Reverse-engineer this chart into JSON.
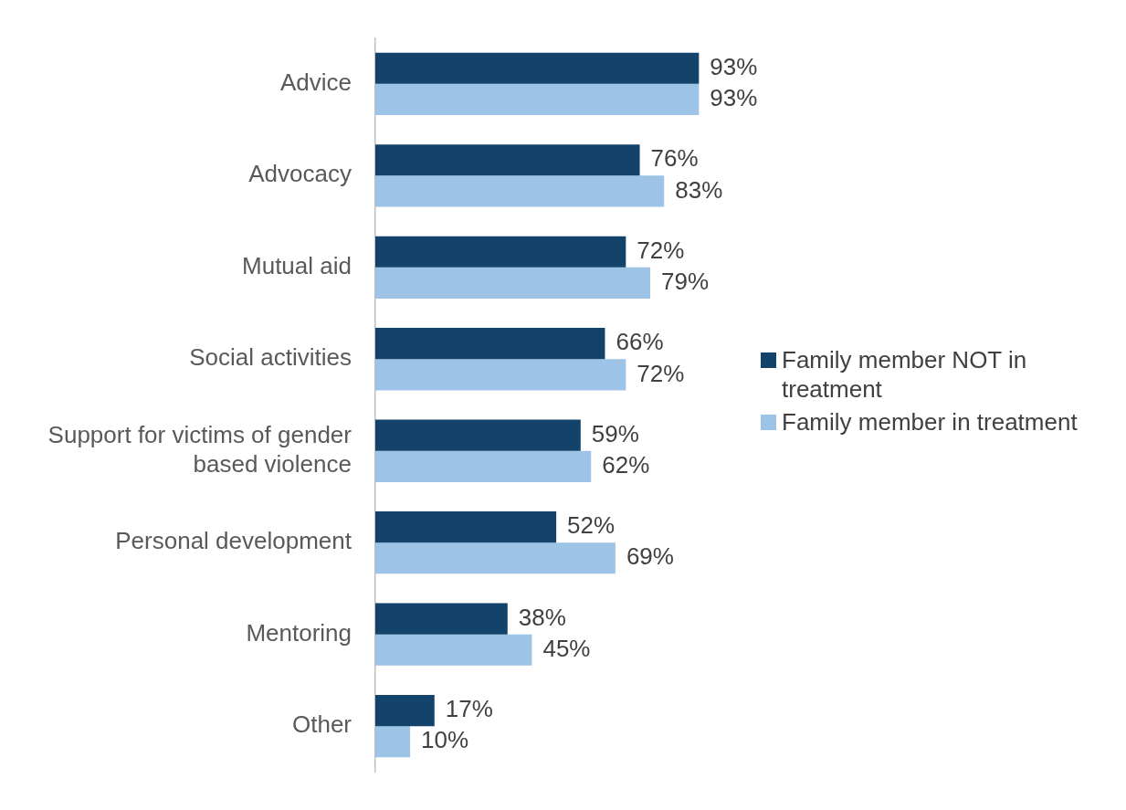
{
  "chart_data": {
    "type": "bar",
    "orientation": "horizontal",
    "categories": [
      "Advice",
      "Advocacy",
      "Mutual aid",
      "Social activities",
      "Support for victims of gender based violence",
      "Personal development",
      "Mentoring",
      "Other"
    ],
    "series": [
      {
        "name": "Family member NOT in treatment",
        "color": "#13426b",
        "values": [
          93,
          76,
          72,
          66,
          59,
          52,
          38,
          17
        ],
        "value_labels": [
          "93%",
          "76%",
          "72%",
          "66%",
          "59%",
          "52%",
          "38%",
          "17%"
        ]
      },
      {
        "name": "Family member in treatment",
        "color": "#9dc3e6",
        "values": [
          93,
          83,
          79,
          72,
          62,
          69,
          45,
          10
        ],
        "value_labels": [
          "93%",
          "83%",
          "79%",
          "72%",
          "62%",
          "69%",
          "45%",
          "10%"
        ]
      }
    ],
    "tick_labels": "y",
    "grid": false,
    "legend": "right"
  }
}
